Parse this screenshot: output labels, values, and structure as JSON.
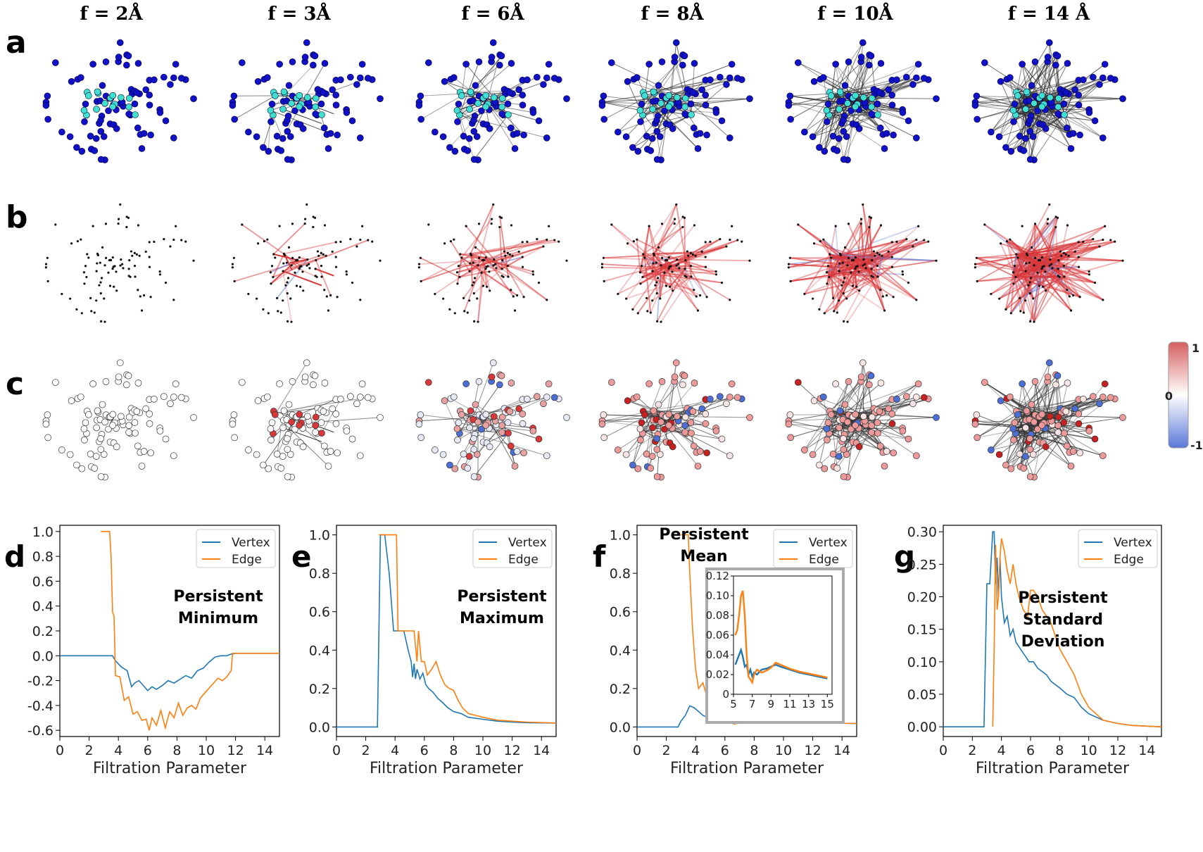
{
  "column_titles": [
    "f = 2Å",
    "f = 3Å",
    "f = 6Å",
    "f = 8Å",
    "f = 10Å",
    "f = 14 Å"
  ],
  "row_labels": [
    "a",
    "b",
    "c"
  ],
  "colorbar": {
    "labels": [
      "1",
      "0",
      "-1"
    ],
    "colors": [
      "#d62728",
      "#ffffff",
      "#4169e1"
    ]
  },
  "colors": {
    "vertex": "#1f77b4",
    "edge": "#ff7f0e",
    "node_dark": "#1010c8",
    "node_light": "#40e0d0"
  },
  "chart_data": [
    {
      "panel": "d",
      "type": "line",
      "annotation": [
        "Persistent",
        "Minimum"
      ],
      "xlabel": "Filtration Parameter",
      "ylabel": "",
      "xlim": [
        0,
        15
      ],
      "ylim": [
        -0.65,
        1.05
      ],
      "xticks": [
        "0",
        "2",
        "4",
        "6",
        "8",
        "10",
        "12",
        "14"
      ],
      "yticks": [
        "1.0",
        "0.8",
        "0.6",
        "0.4",
        "0.2",
        "0.0",
        "-0.2",
        "-0.4",
        "-0.6"
      ],
      "legend": [
        "Vertex",
        "Edge"
      ],
      "legend_position": "top-right",
      "series": [
        {
          "name": "Vertex",
          "x": [
            0,
            3.6,
            3.8,
            4.2,
            4.6,
            4.9,
            5.1,
            5.4,
            5.7,
            6.0,
            6.3,
            6.6,
            7.0,
            7.4,
            7.8,
            8.2,
            8.6,
            9.0,
            9.4,
            9.8,
            10.2,
            10.6,
            11.0,
            11.4,
            11.6,
            12,
            13,
            15
          ],
          "y": [
            0,
            0,
            -0.04,
            -0.09,
            -0.12,
            -0.25,
            -0.22,
            -0.2,
            -0.24,
            -0.28,
            -0.25,
            -0.27,
            -0.24,
            -0.2,
            -0.22,
            -0.19,
            -0.16,
            -0.18,
            -0.12,
            -0.1,
            -0.05,
            -0.01,
            0,
            0,
            0.01,
            0.02,
            0.02,
            0.02
          ]
        },
        {
          "name": "Edge",
          "x": [
            2.8,
            3.4,
            3.5,
            3.6,
            3.7,
            3.8,
            4.1,
            4.4,
            4.7,
            5.0,
            5.3,
            5.6,
            5.9,
            6.1,
            6.3,
            6.6,
            6.9,
            7.2,
            7.5,
            7.8,
            8.1,
            8.4,
            8.7,
            9.0,
            9.3,
            9.6,
            9.9,
            10.2,
            10.5,
            10.8,
            11.1,
            11.4,
            11.7,
            11.8,
            12,
            13,
            15
          ],
          "y": [
            1.0,
            1.0,
            0.8,
            0.35,
            0.32,
            -0.16,
            -0.17,
            -0.36,
            -0.33,
            -0.47,
            -0.45,
            -0.52,
            -0.51,
            -0.6,
            -0.5,
            -0.56,
            -0.44,
            -0.58,
            -0.45,
            -0.5,
            -0.38,
            -0.48,
            -0.42,
            -0.4,
            -0.43,
            -0.34,
            -0.3,
            -0.26,
            -0.22,
            -0.18,
            -0.2,
            -0.17,
            -0.12,
            0.02,
            0.02,
            0.02,
            0.02
          ]
        }
      ]
    },
    {
      "panel": "e",
      "type": "line",
      "annotation": [
        "Persistent",
        "Maximum"
      ],
      "xlabel": "Filtration Parameter",
      "ylabel": "",
      "xlim": [
        0,
        15
      ],
      "ylim": [
        -0.05,
        1.05
      ],
      "xticks": [
        "0",
        "2",
        "4",
        "6",
        "8",
        "10",
        "12",
        "14"
      ],
      "yticks": [
        "1.0",
        "0.8",
        "0.6",
        "0.4",
        "0.2",
        "0.0"
      ],
      "legend": [
        "Vertex",
        "Edge"
      ],
      "legend_position": "top-right",
      "series": [
        {
          "name": "Vertex",
          "x": [
            0,
            2.8,
            3.0,
            3.3,
            3.6,
            3.9,
            4.1,
            4.3,
            4.6,
            4.9,
            5.1,
            5.2,
            5.3,
            5.4,
            5.5,
            5.7,
            5.9,
            6.1,
            6.3,
            6.6,
            6.9,
            7.2,
            7.6,
            8.0,
            8.5,
            9,
            10,
            11,
            12,
            13,
            15
          ],
          "y": [
            0,
            0,
            1.0,
            1.0,
            0.8,
            0.5,
            0.5,
            0.5,
            0.5,
            0.4,
            0.34,
            0.26,
            0.33,
            0.25,
            0.3,
            0.25,
            0.28,
            0.22,
            0.2,
            0.18,
            0.15,
            0.13,
            0.1,
            0.08,
            0.07,
            0.05,
            0.04,
            0.03,
            0.025,
            0.022,
            0.02
          ]
        },
        {
          "name": "Edge",
          "x": [
            2.9,
            4.1,
            4.2,
            5.3,
            5.5,
            5.6,
            5.8,
            6.0,
            6.2,
            6.5,
            6.8,
            7.1,
            7.4,
            7.7,
            8.0,
            8.3,
            8.6,
            9.0,
            10,
            11,
            12,
            13,
            15
          ],
          "y": [
            1.0,
            1.0,
            0.5,
            0.5,
            0.34,
            0.5,
            0.34,
            0.34,
            0.27,
            0.3,
            0.34,
            0.27,
            0.22,
            0.2,
            0.19,
            0.14,
            0.1,
            0.07,
            0.05,
            0.035,
            0.03,
            0.025,
            0.02
          ]
        }
      ]
    },
    {
      "panel": "f",
      "type": "line",
      "annotation": [
        "Persistent",
        "Mean"
      ],
      "xlabel": "Filtration Parameter",
      "ylabel": "",
      "xlim": [
        0,
        15
      ],
      "ylim": [
        -0.05,
        1.05
      ],
      "xticks": [
        "0",
        "2",
        "4",
        "6",
        "8",
        "10",
        "12",
        "14"
      ],
      "yticks": [
        "1.0",
        "0.8",
        "0.6",
        "0.4",
        "0.2",
        "0.0"
      ],
      "legend": [
        "Vertex",
        "Edge"
      ],
      "legend_position": "top-right",
      "series": [
        {
          "name": "Vertex",
          "x": [
            0,
            2.8,
            3.0,
            3.3,
            3.6,
            3.9,
            4.2,
            4.5,
            4.8,
            5.0,
            5.3,
            5.6,
            5.9,
            6.2,
            6.6,
            7,
            8,
            9,
            10,
            11,
            12,
            13,
            15
          ],
          "y": [
            0,
            0,
            0.03,
            0.06,
            0.11,
            0.1,
            0.08,
            0.06,
            0.05,
            0.04,
            0.035,
            0.03,
            0.025,
            0.02,
            0.022,
            0.025,
            0.027,
            0.03,
            0.03,
            0.025,
            0.022,
            0.02,
            0.018
          ]
        },
        {
          "name": "Edge",
          "x": [
            3.0,
            3.5,
            3.6,
            3.8,
            4.0,
            4.2,
            4.5,
            4.8,
            5.1,
            5.4,
            5.7,
            6.0,
            6.3,
            6.6,
            7.0,
            8,
            9,
            10,
            11,
            12,
            13,
            15
          ],
          "y": [
            1.0,
            1.0,
            0.8,
            0.5,
            0.3,
            0.2,
            0.23,
            0.15,
            0.09,
            0.06,
            0.1,
            0.08,
            0.04,
            0.015,
            0.02,
            0.025,
            0.028,
            0.025,
            0.022,
            0.02,
            0.02,
            0.018
          ]
        }
      ],
      "inset": {
        "xlim": [
          5,
          15.5
        ],
        "ylim": [
          0,
          0.12
        ],
        "xticks": [
          "5",
          "7",
          "9",
          "11",
          "13",
          "15"
        ],
        "yticks": [
          "0.12",
          "0.10",
          "0.08",
          "0.06",
          "0.04",
          "0.02",
          "0"
        ],
        "series": [
          {
            "name": "Vertex",
            "x": [
              5.2,
              5.4,
              5.6,
              5.8,
              6.0,
              6.2,
              6.4,
              6.6,
              6.8,
              7.0,
              7.2,
              7.5,
              8,
              8.5,
              9,
              9.5,
              10,
              11,
              12,
              13,
              14,
              15
            ],
            "y": [
              0.03,
              0.035,
              0.04,
              0.045,
              0.038,
              0.028,
              0.03,
              0.02,
              0.025,
              0.018,
              0.022,
              0.02,
              0.025,
              0.026,
              0.028,
              0.03,
              0.028,
              0.025,
              0.022,
              0.02,
              0.018,
              0.016
            ]
          },
          {
            "name": "Edge",
            "x": [
              5.2,
              5.4,
              5.6,
              5.8,
              6.0,
              6.2,
              6.4,
              6.6,
              6.8,
              7.0,
              7.2,
              7.5,
              8,
              8.5,
              9,
              9.5,
              10,
              11,
              12,
              13,
              14,
              15
            ],
            "y": [
              0.06,
              0.065,
              0.08,
              0.1,
              0.105,
              0.08,
              0.04,
              0.018,
              0.015,
              0.012,
              0.02,
              0.025,
              0.022,
              0.024,
              0.027,
              0.032,
              0.03,
              0.026,
              0.023,
              0.021,
              0.019,
              0.017
            ]
          }
        ]
      }
    },
    {
      "panel": "g",
      "type": "line",
      "annotation": [
        "Persistent",
        "Standard",
        "Deviation"
      ],
      "xlabel": "Filtration Parameter",
      "ylabel": "",
      "xlim": [
        0,
        15
      ],
      "ylim": [
        -0.015,
        0.31
      ],
      "xticks": [
        "0",
        "2",
        "4",
        "6",
        "8",
        "10",
        "12",
        "14"
      ],
      "yticks": [
        "0.30",
        "0.25",
        "0.20",
        "0.15",
        "0.10",
        "0.05",
        "0.00"
      ],
      "legend": [
        "Vertex",
        "Edge"
      ],
      "legend_position": "top-right",
      "series": [
        {
          "name": "Vertex",
          "x": [
            0,
            2.8,
            3.0,
            3.2,
            3.4,
            3.5,
            3.6,
            3.7,
            3.8,
            3.9,
            4.0,
            4.2,
            4.4,
            4.6,
            4.8,
            5.0,
            5.3,
            5.6,
            5.9,
            6.2,
            6.5,
            6.8,
            7.1,
            7.4,
            7.7,
            8.0,
            8.5,
            9,
            9.5,
            10,
            11,
            12,
            13,
            15
          ],
          "y": [
            0,
            0,
            0.22,
            0.22,
            0.3,
            0.3,
            0.22,
            0.26,
            0.2,
            0.26,
            0.2,
            0.16,
            0.17,
            0.14,
            0.15,
            0.13,
            0.12,
            0.11,
            0.1,
            0.1,
            0.09,
            0.085,
            0.08,
            0.07,
            0.065,
            0.06,
            0.05,
            0.045,
            0.03,
            0.02,
            0.01,
            0.005,
            0.002,
            0
          ]
        },
        {
          "name": "Edge",
          "x": [
            3.4,
            3.5,
            3.6,
            3.7,
            3.8,
            3.9,
            4.0,
            4.2,
            4.4,
            4.6,
            4.8,
            5.0,
            5.2,
            5.5,
            5.8,
            6.0,
            6.2,
            6.5,
            6.8,
            7.1,
            7.4,
            7.7,
            8.0,
            8.5,
            9,
            9.5,
            10,
            10.5,
            11,
            12,
            13,
            15
          ],
          "y": [
            0,
            0.12,
            0.28,
            0.18,
            0.2,
            0.26,
            0.29,
            0.27,
            0.24,
            0.22,
            0.25,
            0.22,
            0.2,
            0.18,
            0.17,
            0.21,
            0.21,
            0.2,
            0.18,
            0.17,
            0.16,
            0.14,
            0.12,
            0.1,
            0.08,
            0.05,
            0.03,
            0.02,
            0.01,
            0.005,
            0.002,
            0
          ]
        }
      ]
    }
  ]
}
